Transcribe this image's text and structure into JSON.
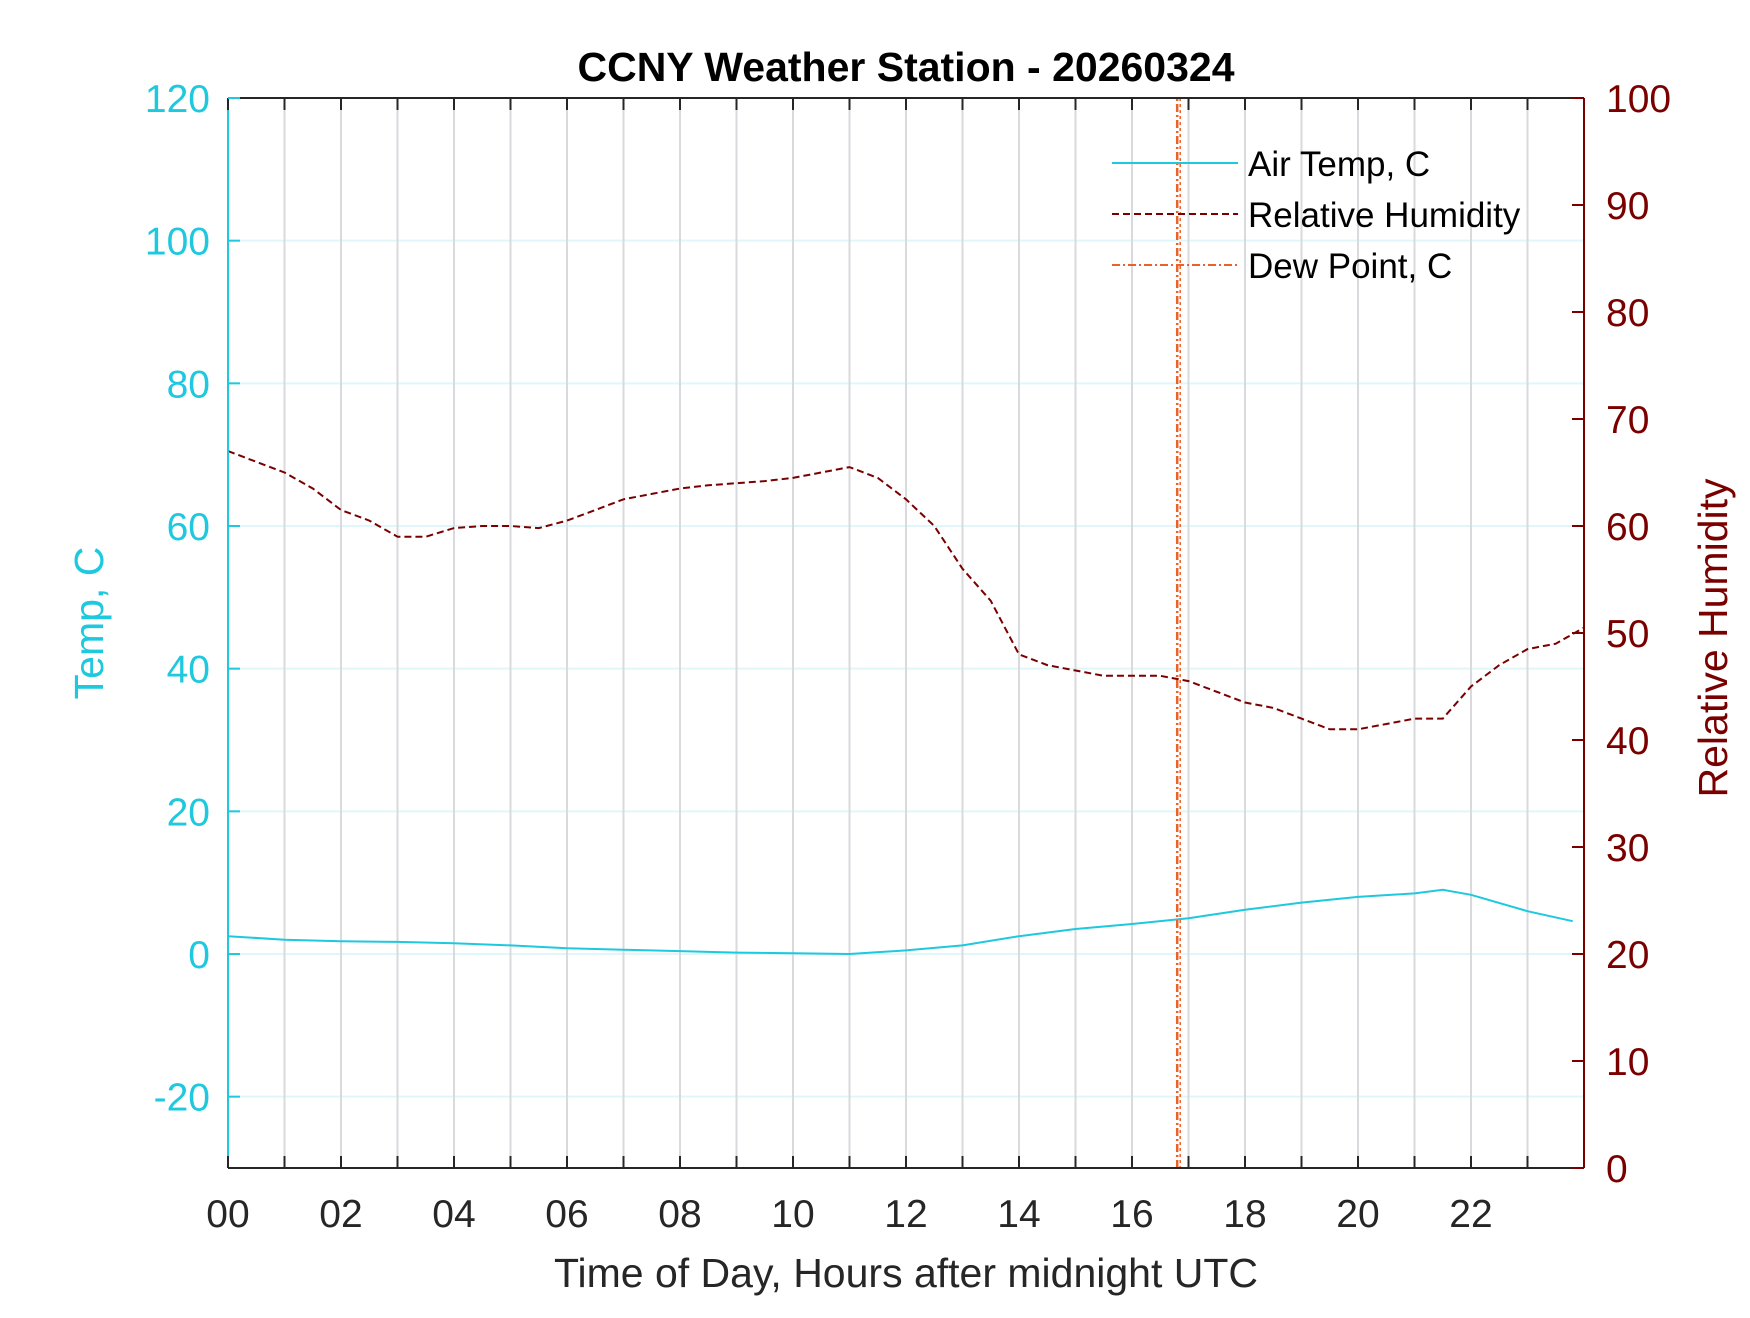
{
  "colors": {
    "temp": "#1ec8de",
    "rh": "#7a0000",
    "dew": "#e8622a",
    "axis": "#262626",
    "grid_v": "#d8dadd",
    "grid_h": "#dff6fa"
  },
  "chart_data": {
    "type": "line",
    "title": "CCNY Weather Station - 20260324",
    "xlabel": "Time of Day, Hours after midnight UTC",
    "ylabel_left": "Temp, C",
    "ylabel_right": "Relative Humidity",
    "xlim": [
      0,
      24
    ],
    "ylim_left": [
      -30,
      120
    ],
    "ylim_right": [
      0,
      100
    ],
    "x_ticks": [
      0,
      2,
      4,
      6,
      8,
      10,
      12,
      14,
      16,
      18,
      20,
      22
    ],
    "x_tick_labels": [
      "00",
      "02",
      "04",
      "06",
      "08",
      "10",
      "12",
      "14",
      "16",
      "18",
      "20",
      "22"
    ],
    "y_left_ticks": [
      -20,
      0,
      20,
      40,
      60,
      80,
      100,
      120
    ],
    "y_left_tick_labels": [
      "-20",
      "0",
      "20",
      "40",
      "60",
      "80",
      "100",
      "120"
    ],
    "y_right_ticks": [
      0,
      10,
      20,
      30,
      40,
      50,
      60,
      70,
      80,
      90,
      100
    ],
    "y_right_tick_labels": [
      "0",
      "10",
      "20",
      "30",
      "40",
      "50",
      "60",
      "70",
      "80",
      "90",
      "100"
    ],
    "grid": true,
    "legend_position": "top-right",
    "series": [
      {
        "name": "Air Temp, C",
        "axis": "left",
        "style": "solid",
        "x": [
          0,
          1,
          2,
          3,
          4,
          5,
          6,
          7,
          8,
          9,
          10,
          11,
          12,
          13,
          14,
          15,
          16,
          17,
          18,
          19,
          20,
          21,
          21.5,
          22,
          23,
          23.8
        ],
        "y": [
          2.5,
          2.0,
          1.8,
          1.7,
          1.5,
          1.2,
          0.8,
          0.6,
          0.4,
          0.2,
          0.1,
          0.0,
          0.5,
          1.2,
          2.5,
          3.5,
          4.2,
          5.0,
          6.2,
          7.2,
          8.0,
          8.5,
          9.0,
          8.3,
          6.0,
          4.6
        ]
      },
      {
        "name": "Relative Humidity",
        "axis": "right",
        "style": "dashed",
        "x": [
          0,
          0.5,
          1,
          1.5,
          2,
          2.5,
          3,
          3.5,
          4,
          4.5,
          5,
          5.5,
          6,
          6.5,
          7,
          7.5,
          8,
          8.5,
          9,
          9.5,
          10,
          10.5,
          11,
          11.5,
          12,
          12.5,
          13,
          13.5,
          14,
          14.5,
          15,
          15.5,
          16,
          16.5,
          17,
          17.5,
          18,
          18.5,
          19,
          19.5,
          20,
          20.5,
          21,
          21.5,
          22,
          22.5,
          23,
          23.5,
          24
        ],
        "y": [
          67,
          66,
          65,
          63.5,
          61.5,
          60.5,
          59,
          59,
          59.8,
          60,
          60,
          59.8,
          60.5,
          61.5,
          62.5,
          63,
          63.5,
          63.8,
          64,
          64.2,
          64.5,
          65,
          65.5,
          64.5,
          62.5,
          60,
          56,
          53,
          48,
          47,
          46.5,
          46,
          46,
          46,
          45.5,
          44.5,
          43.5,
          43,
          42,
          41,
          41,
          41.5,
          42,
          42,
          45,
          47,
          48.5,
          49,
          50.5
        ]
      },
      {
        "name": "Dew Point, C",
        "axis": "left",
        "style": "dash-dot",
        "x": [
          16.8,
          16.8
        ],
        "y": [
          -30,
          120
        ]
      }
    ]
  }
}
